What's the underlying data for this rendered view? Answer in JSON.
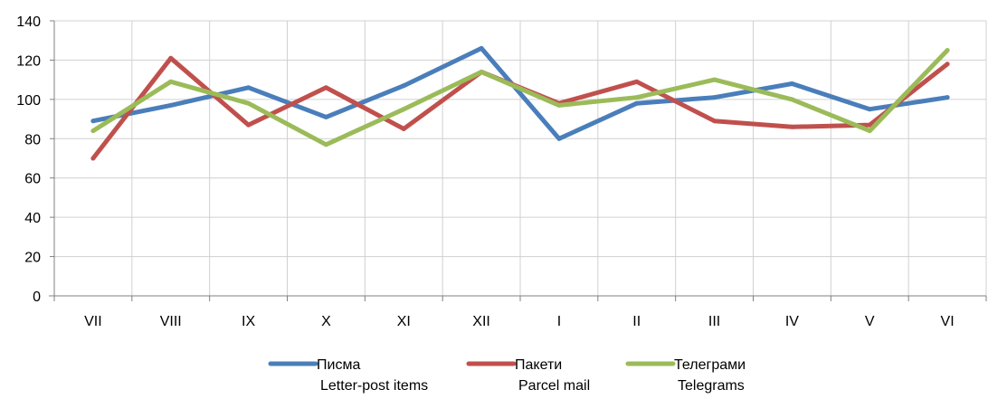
{
  "chart_data": {
    "type": "line",
    "categories": [
      "VII",
      "VIII",
      "IX",
      "X",
      "XI",
      "XII",
      "I",
      "II",
      "III",
      "IV",
      "V",
      "VI"
    ],
    "series": [
      {
        "name": "Писма",
        "name_en": "Letter-post items",
        "color": "#4a7ebb",
        "values": [
          89,
          97,
          106,
          91,
          107,
          126,
          80,
          98,
          101,
          108,
          95,
          101
        ]
      },
      {
        "name": "Пакети",
        "name_en": "Parcel mail",
        "color": "#c0504d",
        "values": [
          70,
          121,
          87,
          106,
          85,
          114,
          98,
          109,
          89,
          86,
          87,
          118
        ]
      },
      {
        "name": "Телеграми",
        "name_en": "Telegrams",
        "color": "#9bbb59",
        "values": [
          84,
          109,
          98,
          77,
          95,
          114,
          97,
          101,
          110,
          100,
          84,
          125
        ]
      }
    ],
    "ylim": [
      0,
      140
    ],
    "yticks": [
      0,
      20,
      40,
      60,
      80,
      100,
      120,
      140
    ],
    "grid": true,
    "legend": "bottom"
  }
}
